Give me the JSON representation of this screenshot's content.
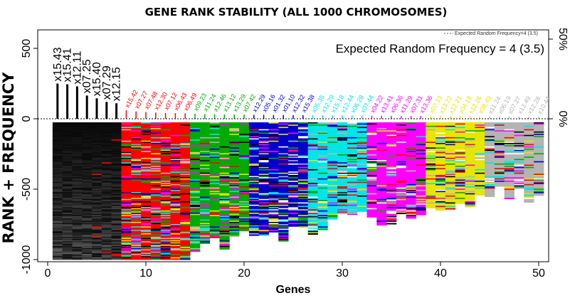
{
  "chart_data": {
    "type": "heatmap",
    "title": "GENE RANK STABILITY (ALL 1000 CHROMOSOMES)",
    "xlabel": "Genes",
    "ylabel": "RANK + FREQUENCY",
    "xlim": [
      0,
      50
    ],
    "ylim": [
      -1000,
      600
    ],
    "x_ticks": [
      "0",
      "10",
      "20",
      "30",
      "40",
      "50"
    ],
    "y_ticks": [
      "-1000",
      "-500",
      "0",
      "500"
    ],
    "right_ticks": [
      "0%",
      "50%"
    ],
    "annotation": "Expected Random Frequency = 4 (3.5)",
    "legend": "Expected Random Frequency=4 (3.5)",
    "group_colors": [
      "#000000",
      "#ff0000",
      "#00aa00",
      "#0000cc",
      "#00e6e6",
      "#ff00ff",
      "#e6e600",
      "#b4b4b4"
    ],
    "genes": [
      {
        "x": 1,
        "label": "x15.43",
        "freq": 250,
        "group": 0
      },
      {
        "x": 2,
        "label": "x15.41",
        "freq": 245,
        "group": 0
      },
      {
        "x": 3,
        "label": "x12.11",
        "freq": 230,
        "group": 0
      },
      {
        "x": 4,
        "label": "x07.25",
        "freq": 165,
        "group": 0
      },
      {
        "x": 5,
        "label": "x15.40",
        "freq": 145,
        "group": 0
      },
      {
        "x": 6,
        "label": "x07.29",
        "freq": 120,
        "group": 0
      },
      {
        "x": 7,
        "label": "x12.15",
        "freq": 110,
        "group": 0
      },
      {
        "x": 8,
        "label": "x15.42",
        "freq": 60,
        "group": 1
      },
      {
        "x": 9,
        "label": "x07.27",
        "freq": 52,
        "group": 1
      },
      {
        "x": 10,
        "label": "x07.48",
        "freq": 48,
        "group": 1
      },
      {
        "x": 11,
        "label": "x12.30",
        "freq": 44,
        "group": 1
      },
      {
        "x": 12,
        "label": "x07.12",
        "freq": 42,
        "group": 1
      },
      {
        "x": 13,
        "label": "x06.43",
        "freq": 40,
        "group": 1
      },
      {
        "x": 14,
        "label": "x06.49",
        "freq": 38,
        "group": 1
      },
      {
        "x": 15,
        "label": "x09.23",
        "freq": 36,
        "group": 2
      },
      {
        "x": 16,
        "label": "x11.24",
        "freq": 34,
        "group": 2
      },
      {
        "x": 17,
        "label": "x12.46",
        "freq": 32,
        "group": 2
      },
      {
        "x": 18,
        "label": "x13.12",
        "freq": 31,
        "group": 2
      },
      {
        "x": 19,
        "label": "x13.29",
        "freq": 30,
        "group": 2
      },
      {
        "x": 20,
        "label": "x07.42",
        "freq": 29,
        "group": 2
      },
      {
        "x": 21,
        "label": "x12.29",
        "freq": 28,
        "group": 3
      },
      {
        "x": 22,
        "label": "x05.16",
        "freq": 28,
        "group": 3
      },
      {
        "x": 23,
        "label": "x01.32",
        "freq": 27,
        "group": 3
      },
      {
        "x": 24,
        "label": "x01.10",
        "freq": 27,
        "group": 3
      },
      {
        "x": 25,
        "label": "x12.32",
        "freq": 26,
        "group": 3
      },
      {
        "x": 26,
        "label": "x15.38",
        "freq": 26,
        "group": 3
      },
      {
        "x": 27,
        "label": "x05.35",
        "freq": 25,
        "group": 4
      },
      {
        "x": 28,
        "label": "x12.29",
        "freq": 25,
        "group": 4
      },
      {
        "x": 29,
        "label": "x15.18",
        "freq": 24,
        "group": 4
      },
      {
        "x": 30,
        "label": "x12.44",
        "freq": 24,
        "group": 4
      },
      {
        "x": 31,
        "label": "x06.28",
        "freq": 23,
        "group": 4
      },
      {
        "x": 32,
        "label": "x07.44",
        "freq": 23,
        "group": 4
      },
      {
        "x": 33,
        "label": "x04.22",
        "freq": 22,
        "group": 5
      },
      {
        "x": 34,
        "label": "x13.41",
        "freq": 22,
        "group": 5
      },
      {
        "x": 35,
        "label": "x06.36",
        "freq": 21,
        "group": 5
      },
      {
        "x": 36,
        "label": "x11.29",
        "freq": 21,
        "group": 5
      },
      {
        "x": 37,
        "label": "x07.31",
        "freq": 20,
        "group": 5
      },
      {
        "x": 38,
        "label": "x13.36",
        "freq": 20,
        "group": 5
      },
      {
        "x": 39,
        "label": "x07.33",
        "freq": 19,
        "group": 6
      },
      {
        "x": 40,
        "label": "x13.22",
        "freq": 19,
        "group": 6
      },
      {
        "x": 41,
        "label": "x12.21",
        "freq": 18,
        "group": 6
      },
      {
        "x": 42,
        "label": "x04.18",
        "freq": 18,
        "group": 6
      },
      {
        "x": 43,
        "label": "x12.26",
        "freq": 17,
        "group": 6
      },
      {
        "x": 44,
        "label": "x08.49",
        "freq": 17,
        "group": 6
      },
      {
        "x": 45,
        "label": "x11.24",
        "freq": 16,
        "group": 7
      },
      {
        "x": 46,
        "label": "x06.19",
        "freq": 16,
        "group": 7
      },
      {
        "x": 47,
        "label": "x07.27",
        "freq": 15,
        "group": 7
      },
      {
        "x": 48,
        "label": "x13.49",
        "freq": 15,
        "group": 7
      },
      {
        "x": 49,
        "label": "x12.28",
        "freq": 14,
        "group": 7
      },
      {
        "x": 50,
        "label": "x10.44",
        "freq": 14,
        "group": 7
      }
    ]
  }
}
